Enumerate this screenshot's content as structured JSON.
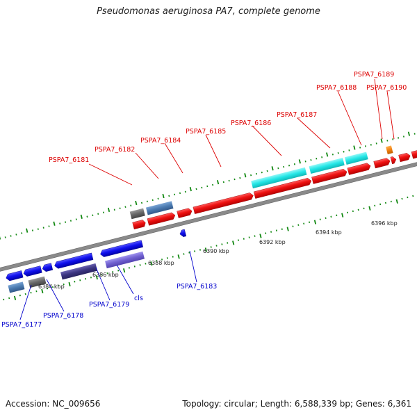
{
  "title": "Pseudomonas aeruginosa PA7, complete genome",
  "accession": "Accession: NC_009656",
  "summary": "Topology: circular; Length: 6,588,339 bp; Genes: 6,361",
  "colors": {
    "forward_gene": "#ee1111",
    "reverse_gene": "#1111ee",
    "forward_label": "#dd0000",
    "reverse_label": "#0000cc",
    "backbone": "#888888",
    "tick": "#118811",
    "cyan_feature": "#22e6e6",
    "steel_feature": "#4a7ab0",
    "gray_feature": "#666666",
    "navy_feature": "#3b3480",
    "lavender_feature": "#7060d0",
    "orange_feature": "#f08010"
  },
  "scale_labels": [
    "6384 kbp",
    "6386 kbp",
    "6388 kbp",
    "6390 kbp",
    "6392 kbp",
    "6394 kbp",
    "6396 kbp"
  ],
  "forward_labels": [
    "PSPA7_6181",
    "PSPA7_6182",
    "PSPA7_6184",
    "PSPA7_6185",
    "PSPA7_6186",
    "PSPA7_6187",
    "PSPA7_6188",
    "PSPA7_6189",
    "PSPA7_6190"
  ],
  "reverse_labels": [
    "PSPA7_6177",
    "PSPA7_6178",
    "PSPA7_6179",
    "cls",
    "PSPA7_6183"
  ]
}
